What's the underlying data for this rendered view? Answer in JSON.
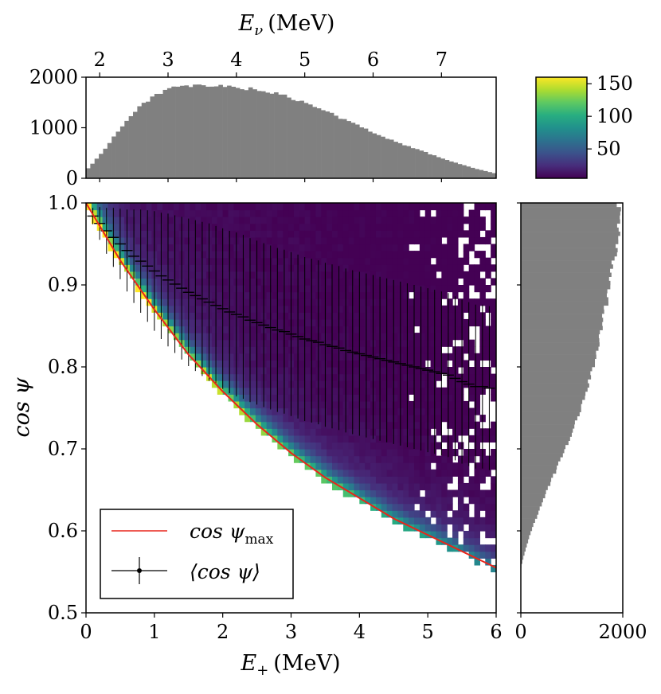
{
  "chart_data": [
    {
      "name": "main-heatmap",
      "type": "heatmap",
      "xlabel": "E+ (MeV)",
      "xlabel_main": "E",
      "xlabel_sub": "+",
      "xlabel_unit": "(MeV)",
      "ylabel": "cos ψ",
      "xlim": [
        0,
        6
      ],
      "ylim": [
        0.5,
        1.0
      ],
      "xticks": [
        0,
        1,
        2,
        3,
        4,
        5,
        6
      ],
      "xtick_labels": [
        "0",
        "1",
        "2",
        "3",
        "4",
        "5",
        "6"
      ],
      "yticks": [
        0.5,
        0.6,
        0.7,
        0.8,
        0.9,
        1.0
      ],
      "ytick_labels": [
        "0.5",
        "0.6",
        "0.7",
        "0.8",
        "0.9",
        "1.0"
      ],
      "bins": {
        "x": 75,
        "y": 60
      },
      "boundary_cos_psi_max": {
        "E": [
          0,
          0.5,
          1,
          1.5,
          2,
          2.5,
          3,
          3.5,
          4,
          4.5,
          5,
          5.5,
          6
        ],
        "cos": [
          1.0,
          0.93,
          0.87,
          0.815,
          0.77,
          0.73,
          0.695,
          0.665,
          0.64,
          0.615,
          0.595,
          0.575,
          0.555
        ]
      },
      "mean_cos_psi": {
        "E": [
          0.1,
          0.2,
          0.3,
          0.4,
          0.5,
          0.6,
          0.7,
          0.8,
          0.9,
          1.0,
          1.1,
          1.2,
          1.3,
          1.4,
          1.5,
          1.6,
          1.7,
          1.8,
          1.9,
          2.0,
          2.1,
          2.2,
          2.3,
          2.4,
          2.5,
          2.6,
          2.7,
          2.8,
          2.9,
          3.0,
          3.1,
          3.2,
          3.3,
          3.4,
          3.5,
          3.6,
          3.7,
          3.8,
          3.9,
          4.0,
          4.1,
          4.2,
          4.3,
          4.4,
          4.5,
          4.6,
          4.7,
          4.8,
          4.9,
          5.0,
          5.1,
          5.2,
          5.3,
          5.4,
          5.5,
          5.6,
          5.7,
          5.8,
          5.9
        ],
        "mean": [
          0.984,
          0.975,
          0.966,
          0.958,
          0.95,
          0.942,
          0.935,
          0.929,
          0.923,
          0.917,
          0.911,
          0.906,
          0.901,
          0.896,
          0.891,
          0.887,
          0.883,
          0.879,
          0.875,
          0.871,
          0.867,
          0.864,
          0.861,
          0.857,
          0.854,
          0.851,
          0.848,
          0.845,
          0.843,
          0.84,
          0.837,
          0.834,
          0.832,
          0.83,
          0.827,
          0.825,
          0.823,
          0.82,
          0.818,
          0.816,
          0.814,
          0.812,
          0.81,
          0.808,
          0.806,
          0.804,
          0.802,
          0.8,
          0.798,
          0.796,
          0.794,
          0.792,
          0.79,
          0.786,
          0.782,
          0.779,
          0.776,
          0.776,
          0.774
        ],
        "err": [
          0.01,
          0.02,
          0.028,
          0.036,
          0.043,
          0.05,
          0.057,
          0.063,
          0.068,
          0.073,
          0.077,
          0.081,
          0.084,
          0.087,
          0.09,
          0.092,
          0.094,
          0.096,
          0.097,
          0.098,
          0.099,
          0.1,
          0.1,
          0.1,
          0.1,
          0.1,
          0.1,
          0.1,
          0.1,
          0.1,
          0.1,
          0.1,
          0.1,
          0.1,
          0.1,
          0.1,
          0.1,
          0.1,
          0.1,
          0.1,
          0.1,
          0.1,
          0.1,
          0.1,
          0.1,
          0.1,
          0.1,
          0.1,
          0.1,
          0.1,
          0.1,
          0.1,
          0.1,
          0.1,
          0.1,
          0.1,
          0.1,
          0.1,
          0.1
        ]
      },
      "legend": {
        "placement": "lower-left",
        "entries": [
          {
            "name": "cos ψmax",
            "main": "cos ψ",
            "sub": "max",
            "color": "#e8251b"
          },
          {
            "name": "⟨cos ψ⟩",
            "text": "⟨cos ψ⟩",
            "color": "#000000"
          }
        ]
      }
    },
    {
      "name": "top-histogram",
      "type": "bar",
      "xlabel": "Eν (MeV)",
      "xlabel_main": "E",
      "xlabel_sub": "ν",
      "xlabel_unit": "(MeV)",
      "x_range": [
        1.8,
        7.8
      ],
      "xticks": [
        2,
        3,
        4,
        5,
        6,
        7
      ],
      "xtick_labels": [
        "2",
        "3",
        "4",
        "5",
        "6",
        "7"
      ],
      "ylim": [
        0,
        2000
      ],
      "yticks": [
        0,
        1000,
        2000
      ],
      "ytick_labels": [
        "0",
        "1000",
        "2000"
      ],
      "color": "#808080",
      "x": [
        1.8,
        2.0,
        2.25,
        2.5,
        2.75,
        3.0,
        3.25,
        3.5,
        3.75,
        4.0,
        4.25,
        4.5,
        4.75,
        5.0,
        5.25,
        5.5,
        5.75,
        6.0,
        6.25,
        6.5,
        6.75,
        7.0,
        7.25,
        7.5,
        7.8
      ],
      "values": [
        150,
        450,
        900,
        1300,
        1600,
        1770,
        1810,
        1830,
        1820,
        1800,
        1760,
        1700,
        1610,
        1490,
        1360,
        1210,
        1060,
        910,
        770,
        640,
        520,
        400,
        290,
        190,
        90
      ]
    },
    {
      "name": "right-histogram",
      "type": "bar",
      "orientation": "horizontal",
      "xlim": [
        0,
        2000
      ],
      "xticks": [
        0,
        2000
      ],
      "xtick_labels": [
        "0",
        "2000"
      ],
      "color": "#808080",
      "cos": [
        0.5,
        0.555,
        0.57,
        0.6,
        0.65,
        0.7,
        0.75,
        0.8,
        0.85,
        0.9,
        0.95,
        0.98,
        1.0
      ],
      "values": [
        0,
        0,
        60,
        200,
        520,
        870,
        1190,
        1420,
        1600,
        1740,
        1880,
        1940,
        1910
      ]
    },
    {
      "name": "colorbar",
      "type": "colorbar",
      "colormap": "viridis",
      "range": [
        5,
        160
      ],
      "ticks": [
        50,
        100,
        150
      ],
      "tick_labels": [
        "50",
        "100",
        "150"
      ]
    }
  ]
}
